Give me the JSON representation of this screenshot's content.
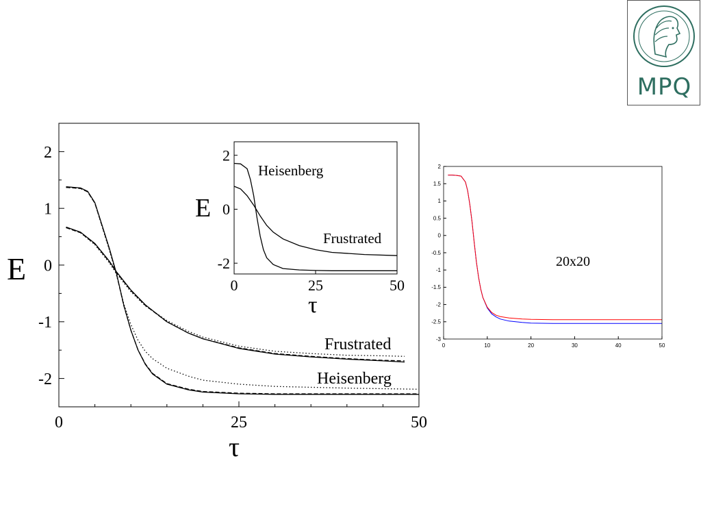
{
  "logo": {
    "text": "MPQ",
    "icon": "minerva-head-icon"
  },
  "chart_data": [
    {
      "type": "line",
      "xlabel": "τ",
      "ylabel": "E",
      "xlim": [
        0,
        50
      ],
      "ylim": [
        -2.5,
        2.5
      ],
      "xticks": [
        0,
        25,
        50
      ],
      "yticks": [
        2,
        1,
        0,
        -1,
        -2
      ],
      "xminor": [
        5,
        10,
        15,
        20,
        30,
        35,
        40,
        45
      ],
      "yminor": [
        1.5,
        0.5,
        -0.5,
        -1.5
      ],
      "annotations": [
        "Frustrated",
        "Heisenberg"
      ],
      "series": [
        {
          "name": "Frustrated",
          "style": "solid",
          "x": [
            1,
            3,
            5,
            7,
            8,
            10,
            12,
            15,
            18,
            20,
            25,
            30,
            35,
            40,
            45,
            48
          ],
          "values": [
            0.67,
            0.58,
            0.38,
            0.07,
            -0.12,
            -0.44,
            -0.7,
            -1.0,
            -1.2,
            -1.3,
            -1.47,
            -1.57,
            -1.62,
            -1.66,
            -1.69,
            -1.71
          ]
        },
        {
          "style": "dashed",
          "x": [
            1,
            3,
            5,
            7,
            8,
            10,
            12,
            15,
            18,
            20,
            25,
            30,
            35,
            40,
            45,
            48
          ],
          "values": [
            0.66,
            0.57,
            0.37,
            0.06,
            -0.13,
            -0.45,
            -0.71,
            -1.0,
            -1.2,
            -1.3,
            -1.46,
            -1.56,
            -1.61,
            -1.65,
            -1.68,
            -1.69
          ]
        },
        {
          "style": "dotted",
          "x": [
            1,
            3,
            5,
            7,
            8,
            10,
            12,
            15,
            18,
            20,
            25,
            30,
            35,
            40,
            45,
            48
          ],
          "values": [
            0.66,
            0.57,
            0.36,
            0.04,
            -0.15,
            -0.47,
            -0.72,
            -0.98,
            -1.17,
            -1.27,
            -1.43,
            -1.52,
            -1.56,
            -1.59,
            -1.6,
            -1.61
          ]
        },
        {
          "name": "Heisenberg",
          "style": "solid",
          "x": [
            1,
            3,
            4,
            5,
            6,
            7,
            8,
            9,
            10,
            11,
            12,
            13,
            15,
            18,
            20,
            25,
            30,
            40,
            50
          ],
          "values": [
            1.38,
            1.36,
            1.3,
            1.1,
            0.7,
            0.3,
            -0.15,
            -0.7,
            -1.15,
            -1.5,
            -1.75,
            -1.92,
            -2.1,
            -2.2,
            -2.24,
            -2.27,
            -2.28,
            -2.28,
            -2.28
          ]
        },
        {
          "style": "dashed",
          "x": [
            1,
            3,
            4,
            5,
            6,
            7,
            8,
            9,
            10,
            11,
            12,
            13,
            15,
            18,
            20,
            25,
            30,
            40,
            50
          ],
          "values": [
            1.37,
            1.35,
            1.29,
            1.09,
            0.69,
            0.29,
            -0.16,
            -0.71,
            -1.15,
            -1.5,
            -1.74,
            -1.91,
            -2.09,
            -2.19,
            -2.23,
            -2.26,
            -2.27,
            -2.27,
            -2.27
          ]
        },
        {
          "style": "dotted",
          "x": [
            1,
            3,
            4,
            5,
            6,
            7,
            8,
            9,
            10,
            11,
            12,
            13,
            15,
            18,
            20,
            25,
            30,
            40,
            50
          ],
          "values": [
            1.37,
            1.35,
            1.29,
            1.09,
            0.68,
            0.27,
            -0.18,
            -0.68,
            -1.05,
            -1.33,
            -1.52,
            -1.65,
            -1.82,
            -1.96,
            -2.03,
            -2.1,
            -2.14,
            -2.17,
            -2.19
          ]
        }
      ]
    },
    {
      "type": "line",
      "xlabel": "τ",
      "ylabel": "E",
      "xlim": [
        0,
        50
      ],
      "ylim": [
        -2.4,
        2.5
      ],
      "xticks": [
        0,
        25,
        50
      ],
      "yticks": [
        2,
        0,
        -2
      ],
      "annotations": [
        "Heisenberg",
        "Frustrated"
      ],
      "series": [
        {
          "name": "Heisenberg",
          "x": [
            0,
            2,
            4,
            5,
            6,
            7,
            8,
            9,
            10,
            12,
            15,
            20,
            25,
            30,
            40,
            50
          ],
          "values": [
            1.7,
            1.68,
            1.5,
            1.1,
            0.5,
            -0.3,
            -1.0,
            -1.5,
            -1.8,
            -2.05,
            -2.2,
            -2.25,
            -2.27,
            -2.28,
            -2.28,
            -2.28
          ]
        },
        {
          "name": "Frustrated",
          "x": [
            0,
            2,
            4,
            6,
            8,
            10,
            12,
            15,
            20,
            25,
            30,
            40,
            50
          ],
          "values": [
            0.85,
            0.75,
            0.5,
            0.15,
            -0.25,
            -0.6,
            -0.85,
            -1.1,
            -1.35,
            -1.5,
            -1.6,
            -1.68,
            -1.72
          ]
        }
      ]
    },
    {
      "type": "line",
      "xlim": [
        0,
        50
      ],
      "ylim": [
        -3,
        2
      ],
      "xticks": [
        0,
        10,
        20,
        30,
        40,
        50
      ],
      "yticks": [
        2,
        1.5,
        1,
        0.5,
        0,
        -0.5,
        -1,
        -1.5,
        -2,
        -2.5,
        -3
      ],
      "annotations": [
        "20x20"
      ],
      "series": [
        {
          "color": "#0000ff",
          "x": [
            1,
            2,
            3,
            4,
            5,
            5.5,
            6,
            6.5,
            7,
            7.5,
            8,
            8.5,
            9,
            10,
            11,
            12,
            13,
            15,
            18,
            20,
            25,
            30,
            40,
            50
          ],
          "values": [
            1.75,
            1.75,
            1.74,
            1.72,
            1.55,
            1.3,
            0.9,
            0.4,
            -0.2,
            -0.75,
            -1.2,
            -1.55,
            -1.8,
            -2.1,
            -2.27,
            -2.36,
            -2.42,
            -2.48,
            -2.52,
            -2.54,
            -2.55,
            -2.55,
            -2.55,
            -2.55
          ]
        },
        {
          "color": "#ff0000",
          "x": [
            1,
            2,
            3,
            4,
            5,
            5.5,
            6,
            6.5,
            7,
            7.5,
            8,
            8.5,
            9,
            10,
            11,
            12,
            13,
            15,
            18,
            20,
            25,
            30,
            40,
            50
          ],
          "values": [
            1.75,
            1.75,
            1.74,
            1.72,
            1.55,
            1.3,
            0.9,
            0.4,
            -0.2,
            -0.75,
            -1.2,
            -1.55,
            -1.8,
            -2.08,
            -2.23,
            -2.31,
            -2.35,
            -2.39,
            -2.42,
            -2.43,
            -2.44,
            -2.44,
            -2.44,
            -2.44
          ]
        }
      ]
    }
  ]
}
